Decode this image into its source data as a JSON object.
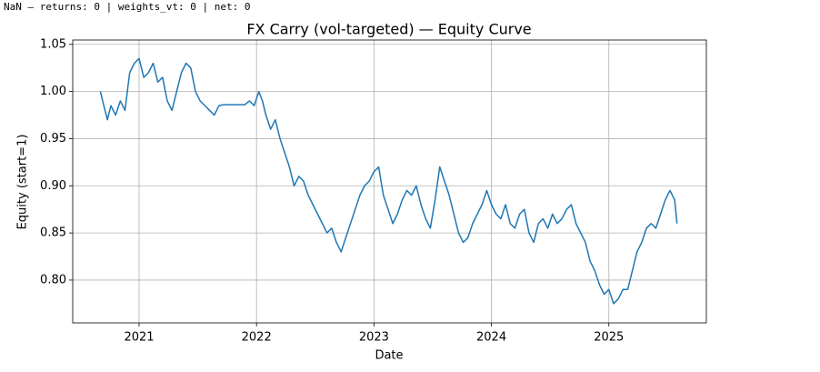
{
  "header_text": "NaN — returns: 0 | weights_vt: 0 | net: 0",
  "chart_data": {
    "type": "line",
    "title": "FX Carry (vol-targeted) — Equity Curve",
    "x_label": "Date",
    "y_label": "Equity (start=1)",
    "color": "#1f77b4",
    "grid": true,
    "xlim": [
      2020.435,
      2025.83
    ],
    "ylim": [
      0.7546,
      1.0546
    ],
    "xticks": [
      2021,
      2022,
      2023,
      2024,
      2025
    ],
    "yticks": [
      {
        "value": 0.8,
        "label": "0.80"
      },
      0.85,
      {
        "value": 0.9,
        "label": "0.90"
      },
      0.95,
      {
        "value": 1.0,
        "label": "1.00"
      },
      1.05
    ],
    "x": [
      2020.67,
      2020.7,
      2020.73,
      2020.76,
      2020.8,
      2020.84,
      2020.88,
      2020.92,
      2020.96,
      2021.0,
      2021.04,
      2021.08,
      2021.12,
      2021.16,
      2021.2,
      2021.24,
      2021.28,
      2021.32,
      2021.36,
      2021.4,
      2021.44,
      2021.48,
      2021.52,
      2021.56,
      2021.6,
      2021.64,
      2021.68,
      2021.72,
      2021.9,
      2021.94,
      2021.98,
      2022.02,
      2022.05,
      2022.08,
      2022.12,
      2022.16,
      2022.2,
      2022.24,
      2022.28,
      2022.32,
      2022.36,
      2022.4,
      2022.44,
      2022.48,
      2022.52,
      2022.56,
      2022.6,
      2022.64,
      2022.68,
      2022.72,
      2022.76,
      2022.8,
      2022.84,
      2022.88,
      2022.92,
      2022.96,
      2023.0,
      2023.04,
      2023.08,
      2023.12,
      2023.16,
      2023.2,
      2023.24,
      2023.28,
      2023.32,
      2023.36,
      2023.4,
      2023.44,
      2023.48,
      2023.52,
      2023.56,
      2023.6,
      2023.64,
      2023.68,
      2023.72,
      2023.76,
      2023.8,
      2023.84,
      2023.88,
      2023.92,
      2023.96,
      2024.0,
      2024.04,
      2024.08,
      2024.12,
      2024.16,
      2024.2,
      2024.24,
      2024.28,
      2024.32,
      2024.36,
      2024.4,
      2024.44,
      2024.48,
      2024.52,
      2024.56,
      2024.6,
      2024.64,
      2024.68,
      2024.72,
      2024.76,
      2024.8,
      2024.84,
      2024.88,
      2024.92,
      2024.96,
      2025.0,
      2025.04,
      2025.08,
      2025.12,
      2025.16,
      2025.2,
      2025.24,
      2025.28,
      2025.32,
      2025.36,
      2025.4,
      2025.44,
      2025.48,
      2025.52,
      2025.56,
      2025.58
    ],
    "values": [
      1.0,
      0.985,
      0.97,
      0.985,
      0.975,
      0.99,
      0.98,
      1.02,
      1.03,
      1.035,
      1.015,
      1.02,
      1.03,
      1.01,
      1.015,
      0.99,
      0.98,
      1.0,
      1.02,
      1.03,
      1.025,
      1.0,
      0.99,
      0.985,
      0.98,
      0.975,
      0.985,
      0.986,
      0.986,
      0.99,
      0.985,
      1.0,
      0.99,
      0.975,
      0.96,
      0.97,
      0.95,
      0.935,
      0.92,
      0.9,
      0.91,
      0.905,
      0.89,
      0.88,
      0.87,
      0.86,
      0.85,
      0.855,
      0.84,
      0.83,
      0.845,
      0.86,
      0.875,
      0.89,
      0.9,
      0.905,
      0.915,
      0.92,
      0.89,
      0.875,
      0.86,
      0.87,
      0.885,
      0.895,
      0.89,
      0.9,
      0.88,
      0.865,
      0.855,
      0.885,
      0.92,
      0.905,
      0.89,
      0.87,
      0.85,
      0.84,
      0.845,
      0.86,
      0.87,
      0.88,
      0.895,
      0.88,
      0.87,
      0.865,
      0.88,
      0.86,
      0.855,
      0.87,
      0.875,
      0.85,
      0.84,
      0.86,
      0.865,
      0.855,
      0.87,
      0.86,
      0.865,
      0.875,
      0.88,
      0.86,
      0.85,
      0.84,
      0.82,
      0.81,
      0.795,
      0.785,
      0.79,
      0.775,
      0.78,
      0.79,
      0.79,
      0.81,
      0.83,
      0.84,
      0.855,
      0.86,
      0.855,
      0.87,
      0.885,
      0.895,
      0.885,
      0.86
    ]
  }
}
